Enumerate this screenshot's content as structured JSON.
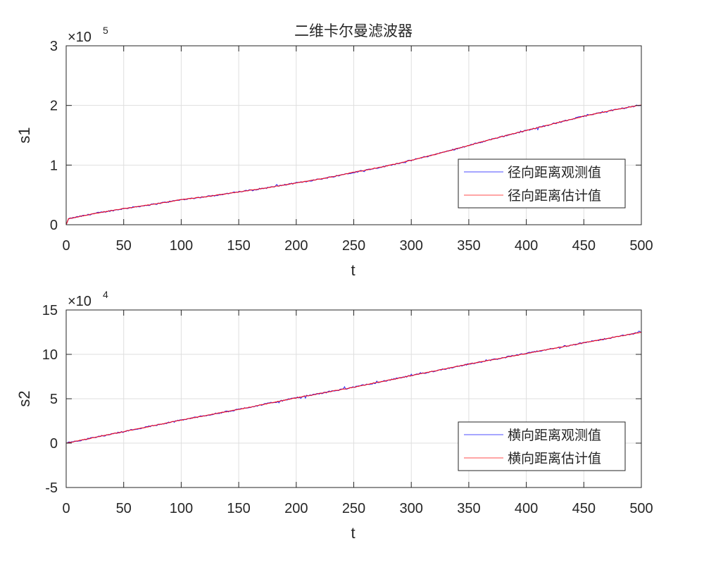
{
  "figure": {
    "title": "二维卡尔曼滤波器",
    "background": "#ffffff"
  },
  "chart_data": [
    {
      "type": "line",
      "title": "二维卡尔曼滤波器",
      "xlabel": "t",
      "ylabel": "s1",
      "xlim": [
        0,
        500
      ],
      "ylim": [
        0,
        300000
      ],
      "x_ticks": [
        0,
        50,
        100,
        150,
        200,
        250,
        300,
        350,
        400,
        450,
        500
      ],
      "x_tick_labels": [
        "0",
        "50",
        "100",
        "150",
        "200",
        "250",
        "300",
        "350",
        "400",
        "450",
        "500"
      ],
      "y_ticks": [
        0,
        100000,
        200000,
        300000
      ],
      "y_tick_labels": [
        "0",
        "1",
        "2",
        "3"
      ],
      "y_exponent_label": "×10",
      "y_exponent": "5",
      "grid": true,
      "legend_position": "lower right",
      "x": [
        0,
        2,
        25,
        50,
        75,
        100,
        125,
        150,
        175,
        200,
        225,
        250,
        275,
        300,
        325,
        350,
        375,
        400,
        425,
        450,
        475,
        500
      ],
      "series": [
        {
          "name": "径向距离观测值",
          "color": "#0000ff",
          "values": [
            0,
            10000,
            19000,
            27000,
            34000,
            42000,
            48000,
            55000,
            62000,
            70000,
            78000,
            88000,
            97000,
            108000,
            120000,
            133000,
            146000,
            158000,
            170000,
            182000,
            192000,
            201000
          ]
        },
        {
          "name": "径向距离估计值",
          "color": "#ff0000",
          "values": [
            0,
            10000,
            19000,
            27000,
            34000,
            42000,
            48000,
            55000,
            62000,
            70000,
            78000,
            88000,
            97000,
            108000,
            120000,
            133000,
            146000,
            158000,
            170000,
            182000,
            192000,
            201000
          ]
        }
      ]
    },
    {
      "type": "line",
      "title": "",
      "xlabel": "t",
      "ylabel": "s2",
      "xlim": [
        0,
        500
      ],
      "ylim": [
        -50000,
        150000
      ],
      "x_ticks": [
        0,
        50,
        100,
        150,
        200,
        250,
        300,
        350,
        400,
        450,
        500
      ],
      "x_tick_labels": [
        "0",
        "50",
        "100",
        "150",
        "200",
        "250",
        "300",
        "350",
        "400",
        "450",
        "500"
      ],
      "y_ticks": [
        -50000,
        0,
        50000,
        100000,
        150000
      ],
      "y_tick_labels": [
        "-5",
        "0",
        "5",
        "10",
        "15"
      ],
      "y_exponent_label": "×10",
      "y_exponent": "4",
      "grid": true,
      "legend_position": "lower right",
      "x": [
        0,
        50,
        100,
        150,
        200,
        250,
        300,
        350,
        400,
        450,
        500
      ],
      "series": [
        {
          "name": "横向距离观测值",
          "color": "#0000ff",
          "values": [
            0,
            13000,
            26000,
            38000,
            51000,
            63000,
            76000,
            89000,
            101000,
            113000,
            125000
          ]
        },
        {
          "name": "横向距离估计值",
          "color": "#ff0000",
          "values": [
            0,
            13000,
            26000,
            38000,
            51000,
            63000,
            76000,
            89000,
            101000,
            113000,
            125000
          ]
        }
      ]
    }
  ],
  "style": {
    "axis_color": "#262626",
    "grid_color": "#dfdfdf",
    "legend_border": "#262626",
    "observed_line": "#0000ff",
    "estimate_line": "#ff0000"
  }
}
